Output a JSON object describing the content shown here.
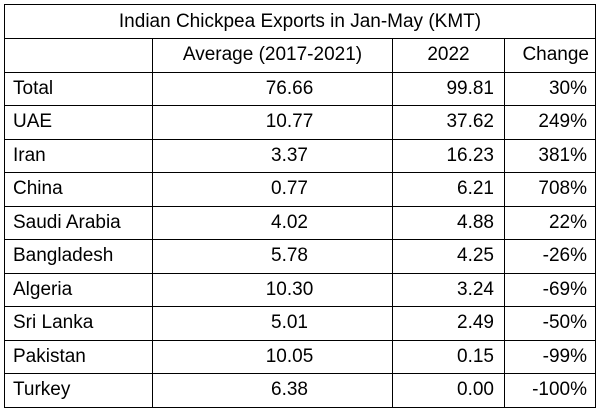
{
  "table": {
    "title": "Indian Chickpea Exports in Jan-May (KMT)",
    "headers": [
      "",
      "Average (2017-2021)",
      "2022",
      "Change"
    ],
    "rows": [
      {
        "country": "Total",
        "average": "76.66",
        "y2022": "99.81",
        "change": "30%"
      },
      {
        "country": "UAE",
        "average": "10.77",
        "y2022": "37.62",
        "change": "249%"
      },
      {
        "country": "Iran",
        "average": "3.37",
        "y2022": "16.23",
        "change": "381%"
      },
      {
        "country": "China",
        "average": "0.77",
        "y2022": "6.21",
        "change": "708%"
      },
      {
        "country": "Saudi Arabia",
        "average": "4.02",
        "y2022": "4.88",
        "change": "22%"
      },
      {
        "country": "Bangladesh",
        "average": "5.78",
        "y2022": "4.25",
        "change": "-26%"
      },
      {
        "country": "Algeria",
        "average": "10.30",
        "y2022": "3.24",
        "change": "-69%"
      },
      {
        "country": "Sri Lanka",
        "average": "5.01",
        "y2022": "2.49",
        "change": "-50%"
      },
      {
        "country": "Pakistan",
        "average": "10.05",
        "y2022": "0.15",
        "change": "-99%"
      },
      {
        "country": "Turkey",
        "average": "6.38",
        "y2022": "0.00",
        "change": "-100%"
      }
    ]
  }
}
